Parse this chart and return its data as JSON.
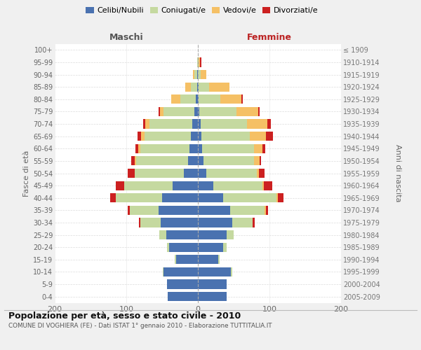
{
  "age_groups": [
    "0-4",
    "5-9",
    "10-14",
    "15-19",
    "20-24",
    "25-29",
    "30-34",
    "35-39",
    "40-44",
    "45-49",
    "50-54",
    "55-59",
    "60-64",
    "65-69",
    "70-74",
    "75-79",
    "80-84",
    "85-89",
    "90-94",
    "95-99",
    "100+"
  ],
  "birth_years": [
    "2005-2009",
    "2000-2004",
    "1995-1999",
    "1990-1994",
    "1985-1989",
    "1980-1984",
    "1975-1979",
    "1970-1974",
    "1965-1969",
    "1960-1964",
    "1955-1959",
    "1950-1954",
    "1945-1949",
    "1940-1944",
    "1935-1939",
    "1930-1934",
    "1925-1929",
    "1920-1924",
    "1915-1919",
    "1910-1914",
    "≤ 1909"
  ],
  "colors": {
    "celibi": "#4a72b0",
    "coniugati": "#c5d9a0",
    "vedovi": "#f5c065",
    "divorziati": "#cc2020"
  },
  "maschi": {
    "celibi": [
      42,
      43,
      48,
      30,
      40,
      44,
      52,
      55,
      50,
      35,
      20,
      14,
      12,
      10,
      8,
      5,
      3,
      1,
      1,
      0,
      0
    ],
    "coniugati": [
      0,
      0,
      1,
      2,
      3,
      10,
      28,
      40,
      65,
      68,
      68,
      72,
      68,
      65,
      60,
      43,
      22,
      9,
      4,
      1,
      0
    ],
    "vedovi": [
      0,
      0,
      0,
      0,
      0,
      0,
      0,
      0,
      0,
      0,
      0,
      2,
      3,
      4,
      6,
      5,
      12,
      8,
      2,
      0,
      0
    ],
    "divorziati": [
      0,
      0,
      0,
      0,
      0,
      0,
      2,
      3,
      8,
      12,
      10,
      5,
      4,
      5,
      2,
      2,
      0,
      0,
      0,
      0,
      0
    ]
  },
  "femmine": {
    "celibi": [
      40,
      40,
      46,
      28,
      35,
      40,
      48,
      45,
      35,
      22,
      12,
      8,
      6,
      5,
      4,
      2,
      1,
      1,
      0,
      0,
      0
    ],
    "coniugati": [
      0,
      0,
      2,
      2,
      5,
      10,
      28,
      48,
      75,
      68,
      70,
      70,
      72,
      68,
      65,
      52,
      30,
      15,
      4,
      1,
      0
    ],
    "vedovi": [
      0,
      0,
      0,
      0,
      0,
      0,
      0,
      2,
      2,
      2,
      3,
      8,
      12,
      22,
      28,
      30,
      30,
      28,
      8,
      2,
      0
    ],
    "divorziati": [
      0,
      0,
      0,
      0,
      0,
      0,
      3,
      3,
      8,
      12,
      8,
      2,
      4,
      10,
      5,
      2,
      2,
      0,
      0,
      2,
      0
    ]
  },
  "title": "Popolazione per età, sesso e stato civile - 2010",
  "subtitle": "COMUNE DI VOGHIERA (FE) - Dati ISTAT 1° gennaio 2010 - Elaborazione TUTTITALIA.IT",
  "label_maschi": "Maschi",
  "label_femmine": "Femmine",
  "ylabel_left": "Fasce di età",
  "ylabel_right": "Anni di nascita",
  "legend_labels": [
    "Celibi/Nubili",
    "Coniugati/e",
    "Vedovi/e",
    "Divorziati/e"
  ],
  "xlim": 200,
  "bg_color": "#f0f0f0",
  "plot_bg": "#ffffff",
  "grid_color": "#cccccc"
}
